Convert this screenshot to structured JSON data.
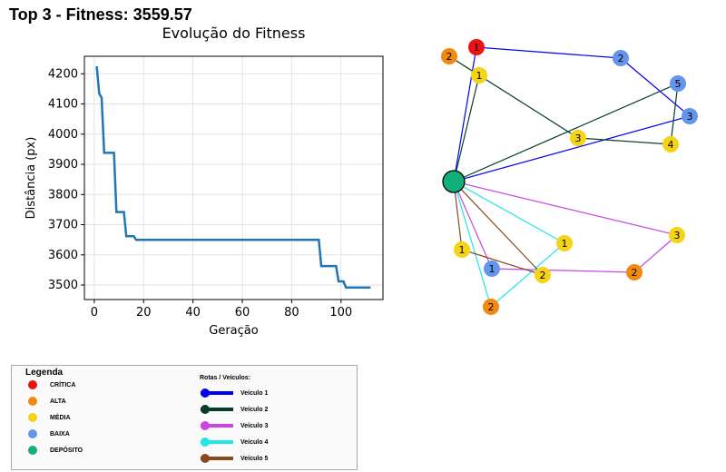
{
  "header": {
    "title": "Top 3 - Fitness: 3559.57"
  },
  "chart_data": {
    "type": "line",
    "title": "Evolução do Fitness",
    "xlabel": "Geração",
    "ylabel": "Distância (px)",
    "xlim": [
      -4,
      117
    ],
    "ylim": [
      3452,
      4258
    ],
    "xticks": [
      0,
      20,
      40,
      60,
      80,
      100
    ],
    "yticks": [
      3500,
      3600,
      3700,
      3800,
      3900,
      4000,
      4100,
      4200
    ],
    "grid": true,
    "color": "#1f77b4",
    "x": [
      1,
      2,
      3,
      4,
      5,
      8,
      9,
      10,
      12,
      13,
      14,
      16,
      17,
      18,
      20,
      91,
      92,
      93,
      95,
      98,
      99,
      100,
      101,
      102,
      112
    ],
    "y": [
      4225,
      4135,
      4120,
      3938,
      3938,
      3938,
      3742,
      3742,
      3742,
      3662,
      3662,
      3662,
      3650,
      3650,
      3650,
      3650,
      3563,
      3563,
      3563,
      3563,
      3512,
      3512,
      3512,
      3492,
      3492
    ]
  },
  "map": {
    "depot": {
      "label": "",
      "color": "#10b07a"
    },
    "nodes": [
      {
        "id": "r1_n1",
        "label": "1",
        "priority": "critica"
      },
      {
        "id": "r1_n2",
        "label": "2",
        "priority": "baixa"
      },
      {
        "id": "r1_n3",
        "label": "3",
        "priority": "baixa"
      },
      {
        "id": "r2_n1",
        "label": "1",
        "priority": "media"
      },
      {
        "id": "r2_n2",
        "label": "2",
        "priority": "alta"
      },
      {
        "id": "r2_n3",
        "label": "3",
        "priority": "media"
      },
      {
        "id": "r2_n4",
        "label": "4",
        "priority": "media"
      },
      {
        "id": "r2_n5",
        "label": "5",
        "priority": "baixa"
      },
      {
        "id": "r3_n1",
        "label": "1",
        "priority": "baixa"
      },
      {
        "id": "r3_n2",
        "label": "2",
        "priority": "alta"
      },
      {
        "id": "r3_n3",
        "label": "3",
        "priority": "media"
      },
      {
        "id": "r4_n1",
        "label": "1",
        "priority": "media"
      },
      {
        "id": "r4_n2",
        "label": "2",
        "priority": "alta"
      },
      {
        "id": "r5_n1",
        "label": "1",
        "priority": "media"
      },
      {
        "id": "r5_n2",
        "label": "2",
        "priority": "media"
      }
    ],
    "routes": [
      {
        "vehicle": "Veículo 1",
        "color": "#0000ee",
        "path": [
          "depot",
          "r1_n1",
          "r1_n2",
          "r1_n3",
          "depot"
        ]
      },
      {
        "vehicle": "Veículo 2",
        "color": "#063e2e",
        "path": [
          "depot",
          "r2_n1",
          "r2_n2",
          "r2_n3",
          "r2_n4",
          "r2_n5",
          "depot"
        ]
      },
      {
        "vehicle": "Veículo 3",
        "color": "#cc44e8",
        "path": [
          "depot",
          "r3_n1",
          "r3_n2",
          "r3_n3",
          "depot"
        ]
      },
      {
        "vehicle": "Veículo 4",
        "color": "#22e5e5",
        "path": [
          "depot",
          "r4_n1",
          "r4_n2",
          "depot"
        ]
      },
      {
        "vehicle": "Veículo 5",
        "color": "#8b4a1e",
        "path": [
          "depot",
          "r5_n1",
          "r5_n2",
          "depot"
        ]
      }
    ]
  },
  "priority_colors": {
    "critica": "#ee1111",
    "alta": "#f28a12",
    "media": "#f5d316",
    "baixa": "#6495ed"
  },
  "legend": {
    "title": "Legenda",
    "priorities": [
      {
        "key": "critica",
        "label": "CRÍTICA",
        "color": "#ee1111"
      },
      {
        "key": "alta",
        "label": "ALTA",
        "color": "#f28a12"
      },
      {
        "key": "media",
        "label": "MÉDIA",
        "color": "#f5d316"
      },
      {
        "key": "baixa",
        "label": "BAIXA",
        "color": "#6495ed"
      },
      {
        "key": "deposito",
        "label": "DEPÓSITO",
        "color": "#10b07a"
      }
    ],
    "routes_title": "Rotas / Veículos:",
    "routes": [
      {
        "label": "Veículo 1",
        "color": "#0000ee"
      },
      {
        "label": "Veículo 2",
        "color": "#063e2e"
      },
      {
        "label": "Veículo 3",
        "color": "#cc44e8"
      },
      {
        "label": "Veículo 4",
        "color": "#22e5e5"
      },
      {
        "label": "Veículo 5",
        "color": "#8b4a1e"
      }
    ]
  }
}
